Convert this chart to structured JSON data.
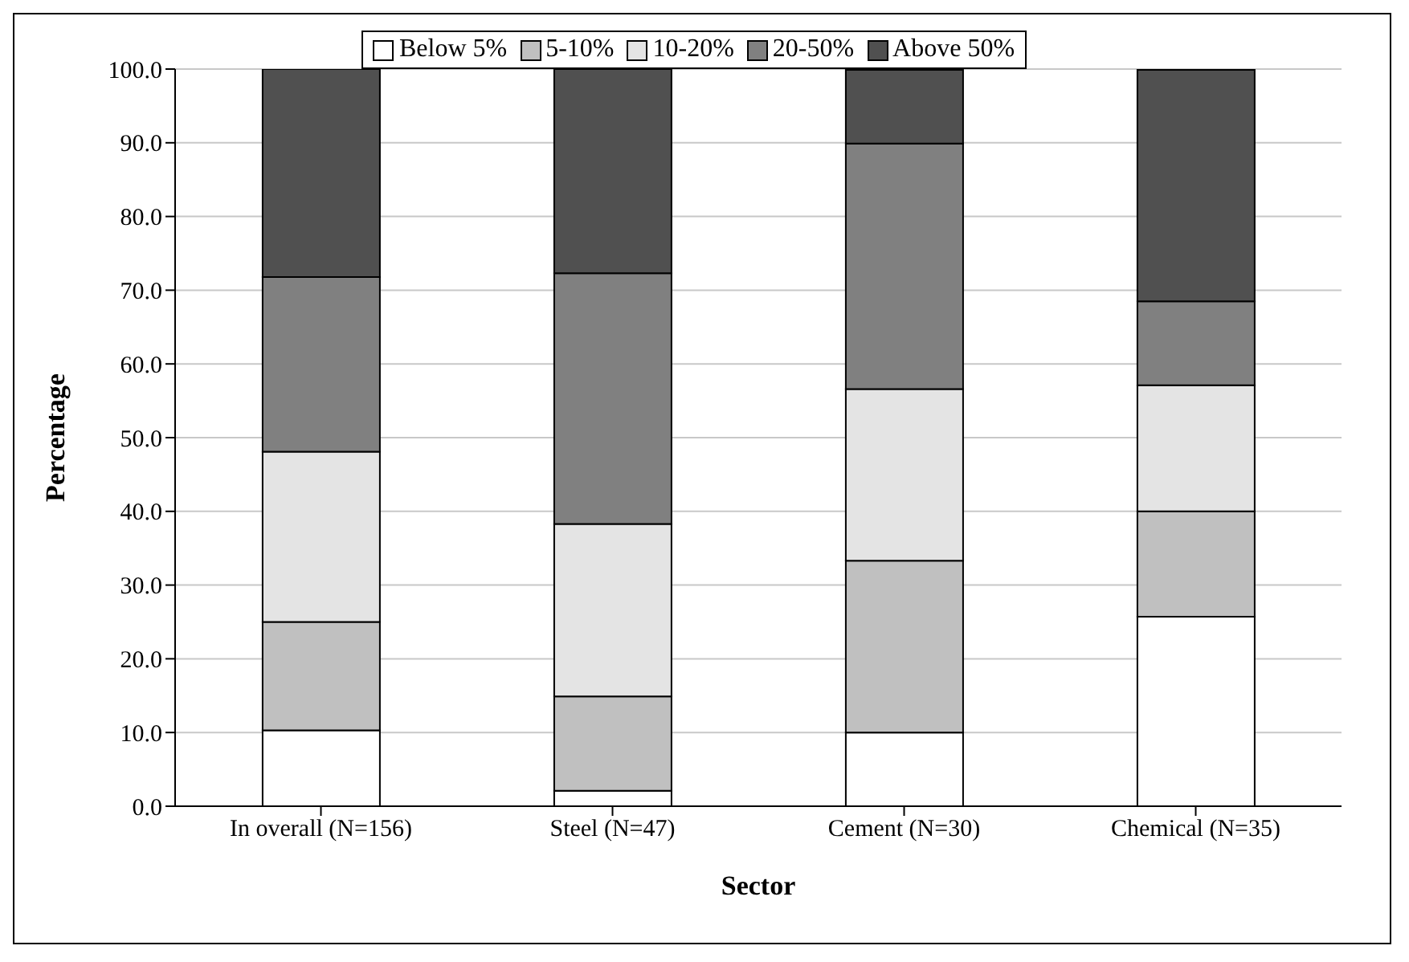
{
  "chart_data": {
    "type": "bar",
    "stacked": true,
    "xlabel": "Sector",
    "ylabel": "Percentage",
    "categories": [
      "In overall (N=156)",
      "Steel (N=47)",
      "Cement (N=30)",
      "Chemical (N=35)"
    ],
    "series": [
      {
        "name": "Below 5%",
        "color": "#ffffff",
        "values": [
          10.3,
          2.1,
          10.0,
          25.7
        ]
      },
      {
        "name": "5-10%",
        "color": "#c0c0c0",
        "values": [
          14.7,
          12.8,
          23.3,
          14.3
        ]
      },
      {
        "name": "10-20%",
        "color": "#e4e4e4",
        "values": [
          23.1,
          23.4,
          23.3,
          17.1
        ]
      },
      {
        "name": "20-50%",
        "color": "#808080",
        "values": [
          23.7,
          34.0,
          33.3,
          11.4
        ]
      },
      {
        "name": "Above 50%",
        "color": "#505050",
        "values": [
          28.2,
          27.7,
          10.0,
          31.4
        ]
      }
    ],
    "ylim": [
      0,
      100
    ],
    "yticks": [
      {
        "value": 0,
        "label": "0.0"
      },
      {
        "value": 10,
        "label": "10.0"
      },
      {
        "value": 20,
        "label": "20.0"
      },
      {
        "value": 30,
        "label": "30.0"
      },
      {
        "value": 40,
        "label": "40.0"
      },
      {
        "value": 50,
        "label": "50.0"
      },
      {
        "value": 60,
        "label": "60.0"
      },
      {
        "value": 70,
        "label": "70.0"
      },
      {
        "value": 80,
        "label": "80.0"
      },
      {
        "value": 90,
        "label": "90.0"
      },
      {
        "value": 100,
        "label": "100.0"
      }
    ],
    "grid": "y",
    "legend": "top"
  }
}
